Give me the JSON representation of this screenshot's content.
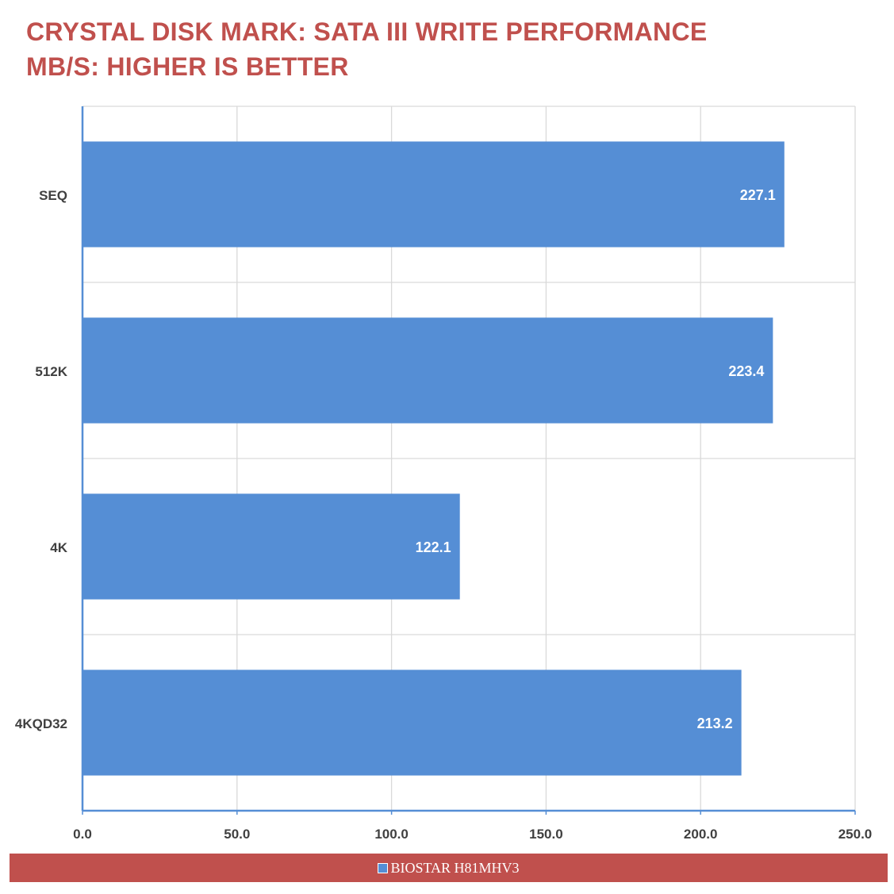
{
  "title": "CRYSTAL DISK MARK: SATA III WRITE PERFORMANCE",
  "subtitle": "MB/S: HIGHER IS BETTER",
  "colors": {
    "title": "#c0504d",
    "bar": "#558ed5",
    "legend_bg": "#c0504d",
    "grid": "#d9d9d9",
    "axis": "#558ed5"
  },
  "chart_data": {
    "type": "bar",
    "orientation": "horizontal",
    "title": "CRYSTAL DISK MARK: SATA III WRITE PERFORMANCE",
    "subtitle": "MB/S: HIGHER IS BETTER",
    "categories": [
      "SEQ",
      "512K",
      "4K",
      "4KQD32"
    ],
    "series": [
      {
        "name": "BIOSTAR H81MHV3",
        "values": [
          227.1,
          223.4,
          122.1,
          213.2
        ]
      }
    ],
    "value_labels": [
      "227.1",
      "223.4",
      "122.1",
      "213.2"
    ],
    "xlim": [
      0,
      250
    ],
    "xticks": [
      "0.0",
      "50.0",
      "100.0",
      "150.0",
      "200.0",
      "250.0"
    ],
    "grid": true,
    "legend_position": "bottom"
  }
}
